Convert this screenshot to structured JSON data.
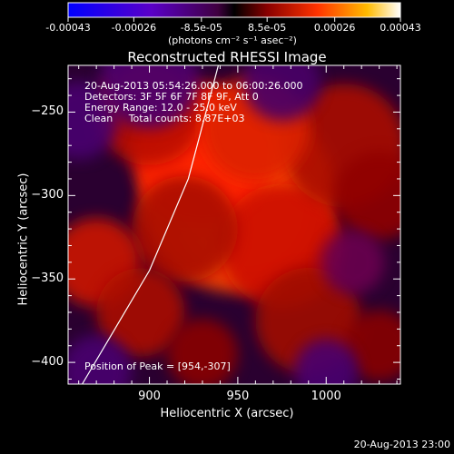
{
  "chart_data": {
    "type": "heatmap",
    "title": "Reconstructed RHESSI Image",
    "xlabel": "Heliocentric X (arcsec)",
    "ylabel": "Heliocentric Y (arcsec)",
    "xlim": [
      854,
      1042
    ],
    "ylim": [
      -413,
      -222
    ],
    "x_ticks": [
      "900",
      "950",
      "1000"
    ],
    "y_ticks": [
      "-250",
      "-300",
      "-350",
      "-400"
    ],
    "x_tick_values": [
      900,
      950,
      1000
    ],
    "y_tick_values": [
      -250,
      -300,
      -350,
      -400
    ],
    "colorbar": {
      "ticks": [
        "-0.00043",
        "-0.00026",
        "-8.5e-05",
        "8.5e-05",
        "0.00026",
        "0.00043"
      ],
      "tick_values": [
        -0.00043,
        -0.00026,
        -8.5e-05,
        8.5e-05,
        0.00026,
        0.00043
      ],
      "range": [
        -0.00043,
        0.00043
      ],
      "unit_label": "(photons cm⁻² s⁻¹ asec⁻²)"
    },
    "annotations": [
      "20-Aug-2013 05:54:26.000 to 06:00:26.000",
      "Detectors: 3F 5F 6F 7F 8F 9F, Att 0",
      "Energy Range: 12.0 - 25.0 keV",
      "Clean     Total counts: 8.87E+03"
    ],
    "peak_label": "Position of Peak = [954,-307]",
    "peak": [
      954,
      -307
    ],
    "limb_curve": [
      [
        862,
        -413
      ],
      [
        900,
        -345
      ],
      [
        922,
        -290
      ],
      [
        939,
        -222
      ]
    ]
  },
  "footer": {
    "timestamp": "20-Aug-2013 23:00"
  },
  "colors": {
    "background": "#000000",
    "text": "#ffffff",
    "limb": "#ffffff"
  }
}
